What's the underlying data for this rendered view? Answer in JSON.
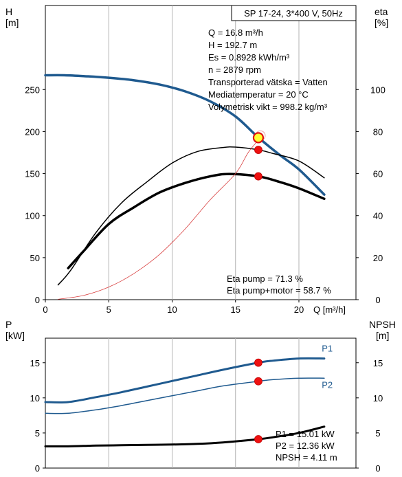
{
  "chart_data": [
    {
      "type": "line",
      "title": "SP 17-24, 3*400 V, 50Hz",
      "xlabel": "Q [m³/h]",
      "ylabel_left": [
        "H",
        "[m]"
      ],
      "ylabel_right": [
        "eta",
        "[%]"
      ],
      "xlim": [
        0,
        24.5
      ],
      "ylim_left": [
        0,
        350
      ],
      "ylim_right": [
        0,
        140
      ],
      "x_ticks": [
        0,
        5,
        10,
        15,
        20
      ],
      "y_ticks_left": [
        0,
        50,
        100,
        150,
        200,
        250
      ],
      "y_ticks_right": [
        0,
        20,
        40,
        60,
        80,
        100
      ],
      "grid": "vertical",
      "series": [
        {
          "key": "head",
          "axis": "left",
          "color": "#1f5a8f",
          "width": 3.5,
          "x": [
            0.0,
            1.5,
            3.0,
            5.0,
            7.0,
            9.0,
            11.0,
            13.0,
            15.0,
            16.8,
            18.5,
            20.0,
            22.0
          ],
          "y": [
            267,
            267,
            266,
            264,
            261,
            256,
            248,
            236,
            218,
            193,
            172,
            155,
            125
          ]
        },
        {
          "key": "eta-pump",
          "axis": "right",
          "color": "#000000",
          "width": 1.5,
          "x": [
            1.0,
            2.0,
            4.0,
            6.0,
            8.0,
            10.0,
            12.0,
            14.0,
            15.0,
            16.8,
            18.0,
            20.0,
            22.0
          ],
          "y": [
            7,
            14,
            32,
            46,
            56,
            65,
            70.5,
            72.4,
            72.6,
            71.3,
            69.5,
            66,
            58
          ]
        },
        {
          "key": "eta-pump-motor",
          "axis": "right",
          "color": "#000000",
          "width": 3.5,
          "x": [
            1.8,
            3.0,
            5.0,
            7.0,
            9.0,
            11.0,
            13.0,
            14.5,
            16.8,
            18.5,
            20.0,
            22.0
          ],
          "y": [
            15,
            23,
            36,
            44,
            51,
            55.5,
            58.7,
            59.8,
            58.7,
            56,
            53,
            48
          ]
        },
        {
          "key": "system-curve",
          "axis": "right",
          "color": "#d94040",
          "width": 0.8,
          "x": [
            1.0,
            3.0,
            5.0,
            7.0,
            9.0,
            11.0,
            13.0,
            15.0,
            16.0,
            16.8,
            17.0
          ],
          "y": [
            0.2,
            2.0,
            6.0,
            12.5,
            21.5,
            33.5,
            47.5,
            60,
            70,
            76,
            78.2
          ]
        }
      ],
      "operating_point": {
        "Q": 16.8,
        "H": 192.7
      },
      "markers": [
        {
          "axis": "right",
          "x": 16.8,
          "y": 71.3,
          "color": "#ee1111"
        },
        {
          "axis": "right",
          "x": 16.8,
          "y": 58.7,
          "color": "#ee1111"
        }
      ],
      "info_lines": [
        "Q = 16.8 m³/h",
        "H = 192.7 m",
        "Es = 0.8928 kWh/m³",
        "n = 2879 rpm",
        "Transporterad vätska = Vatten",
        "Mediatemperatur = 20 °C",
        "Volymetrisk vikt = 998.2 kg/m³"
      ],
      "eta_lines": [
        "Eta pump = 71.3 %",
        "Eta pump+motor = 58.7 %"
      ]
    },
    {
      "type": "line",
      "ylabel_left": [
        "P",
        "[kW]"
      ],
      "ylabel_right": [
        "NPSH",
        "[m]"
      ],
      "xlim": [
        0,
        24.5
      ],
      "ylim_left": [
        0,
        18.5
      ],
      "ylim_right": [
        0,
        18.5
      ],
      "y_ticks_left": [
        0,
        5,
        10,
        15
      ],
      "y_ticks_right": [
        0,
        5,
        10,
        15
      ],
      "grid": "vertical",
      "series": [
        {
          "key": "p1",
          "name": "P1",
          "axis": "left",
          "color": "#1f5a8f",
          "width": 3,
          "x": [
            0.0,
            1.8,
            4.0,
            6.0,
            8.0,
            10.0,
            12.0,
            14.0,
            16.8,
            18.0,
            20.0,
            22.0
          ],
          "y": [
            9.4,
            9.4,
            10.1,
            10.8,
            11.6,
            12.4,
            13.2,
            14.0,
            15.01,
            15.3,
            15.6,
            15.6
          ]
        },
        {
          "key": "p2",
          "name": "P2",
          "axis": "left",
          "color": "#1f5a8f",
          "width": 1.5,
          "x": [
            0.0,
            1.8,
            4.0,
            6.0,
            8.0,
            10.0,
            12.0,
            14.0,
            16.8,
            18.0,
            20.0,
            22.0
          ],
          "y": [
            7.8,
            7.8,
            8.3,
            8.9,
            9.6,
            10.3,
            11.0,
            11.7,
            12.36,
            12.6,
            12.8,
            12.8
          ]
        },
        {
          "key": "npsh",
          "axis": "right",
          "color": "#000000",
          "width": 3,
          "x": [
            0.0,
            1.8,
            4.0,
            6.0,
            8.0,
            10.0,
            12.0,
            14.0,
            16.8,
            18.0,
            20.0,
            22.0
          ],
          "y": [
            3.1,
            3.1,
            3.2,
            3.25,
            3.3,
            3.35,
            3.45,
            3.65,
            4.11,
            4.4,
            5.0,
            5.9
          ]
        }
      ],
      "series_labels": [
        {
          "text": "P1",
          "x": 21.8,
          "y": 16.6
        },
        {
          "text": "P2",
          "x": 21.8,
          "y": 11.4
        }
      ],
      "markers": [
        {
          "axis": "left",
          "x": 16.8,
          "y": 15.01,
          "color": "#ee1111"
        },
        {
          "axis": "left",
          "x": 16.8,
          "y": 12.36,
          "color": "#ee1111"
        },
        {
          "axis": "right",
          "x": 16.8,
          "y": 4.11,
          "color": "#ee1111"
        }
      ],
      "info_lines": [
        "P1 = 15.01 kW",
        "P2 = 12.36 kW",
        "NPSH = 4.11 m"
      ]
    }
  ]
}
